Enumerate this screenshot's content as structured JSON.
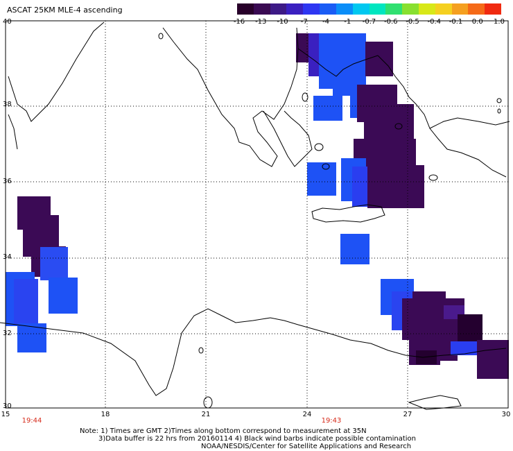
{
  "title": "ASCAT 25KM MLE-4 ascending",
  "colorbar": {
    "labels": [
      "-16",
      "-13",
      "-10",
      "-7",
      "-4",
      "-1",
      "-0.7",
      "-0.6",
      "-0.5",
      "-0.4",
      "-0.1",
      "0.0",
      "1.0"
    ],
    "colors": [
      "#28002a",
      "#3a0a52",
      "#3d1a86",
      "#3a20c0",
      "#2e36f2",
      "#1a5cf5",
      "#0a8ef8",
      "#00c8f0",
      "#00e6c0",
      "#30e070",
      "#88e030",
      "#d8e818",
      "#f5d020",
      "#f5a020",
      "#f56a18",
      "#f02a10"
    ]
  },
  "axes": {
    "x_ticks": [
      "15",
      "18",
      "21",
      "24",
      "27",
      "30"
    ],
    "y_ticks": [
      "40",
      "38",
      "36",
      "34",
      "32",
      "30"
    ]
  },
  "times": [
    "19:44",
    "19:43"
  ],
  "notes": {
    "line1": "Note: 1) Times are GMT 2)Times along bottom correspond to measurement at 35N",
    "line2": "3)Data buffer is 22 hrs from 20160114 4) Black wind barbs indicate possible contamination",
    "line3": "NOAA/NESDIS/Center for Satellite Applications and Research"
  },
  "colors": {
    "purple": "#3b0a55",
    "dark_purple": "#24002f",
    "mid_purple": "#4a1a8c",
    "blue": "#1e52f5",
    "blue2": "#2a44f0",
    "time_red": "#d62a1a"
  }
}
